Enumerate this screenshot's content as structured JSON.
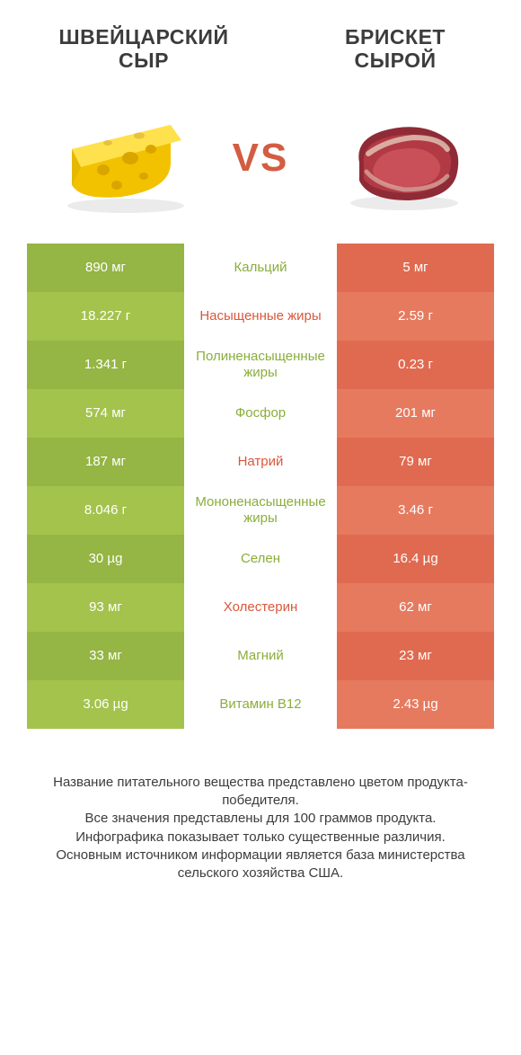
{
  "header": {
    "left_title_1": "ШВЕЙЦАРСКИЙ",
    "left_title_2": "СЫР",
    "right_title_1": "БРИСКЕТ",
    "right_title_2": "СЫРОЙ",
    "vs": "VS"
  },
  "colors": {
    "green_a": "#95b544",
    "green_b": "#a4c34d",
    "red_a": "#e06a50",
    "red_b": "#e67a5f",
    "label_green": "#8aae3a",
    "label_red": "#d9583c",
    "text_white": "#ffffff",
    "bg": "#ffffff"
  },
  "table": {
    "rows": [
      {
        "left": "890 мг",
        "label": "Кальций",
        "right": "5 мг",
        "label_color": "green"
      },
      {
        "left": "18.227 г",
        "label": "Насыщенные жиры",
        "right": "2.59 г",
        "label_color": "red"
      },
      {
        "left": "1.341 г",
        "label": "Полиненасыщенные жиры",
        "right": "0.23 г",
        "label_color": "green"
      },
      {
        "left": "574 мг",
        "label": "Фосфор",
        "right": "201 мг",
        "label_color": "green"
      },
      {
        "left": "187 мг",
        "label": "Натрий",
        "right": "79 мг",
        "label_color": "red"
      },
      {
        "left": "8.046 г",
        "label": "Мононенасыщенные жиры",
        "right": "3.46 г",
        "label_color": "green"
      },
      {
        "left": "30 µg",
        "label": "Селен",
        "right": "16.4 µg",
        "label_color": "green"
      },
      {
        "left": "93 мг",
        "label": "Холестерин",
        "right": "62 мг",
        "label_color": "red"
      },
      {
        "left": "33 мг",
        "label": "Магний",
        "right": "23 мг",
        "label_color": "green"
      },
      {
        "left": "3.06 µg",
        "label": "Витамин B12",
        "right": "2.43 µg",
        "label_color": "green"
      }
    ]
  },
  "footer": {
    "line1": "Название питательного вещества представлено цветом продукта-победителя.",
    "line2": "Все значения представлены для 100 граммов продукта.",
    "line3": "Инфографика показывает только существенные различия.",
    "line4": "Основным источником информации является база министерства сельского хозяйства США."
  }
}
